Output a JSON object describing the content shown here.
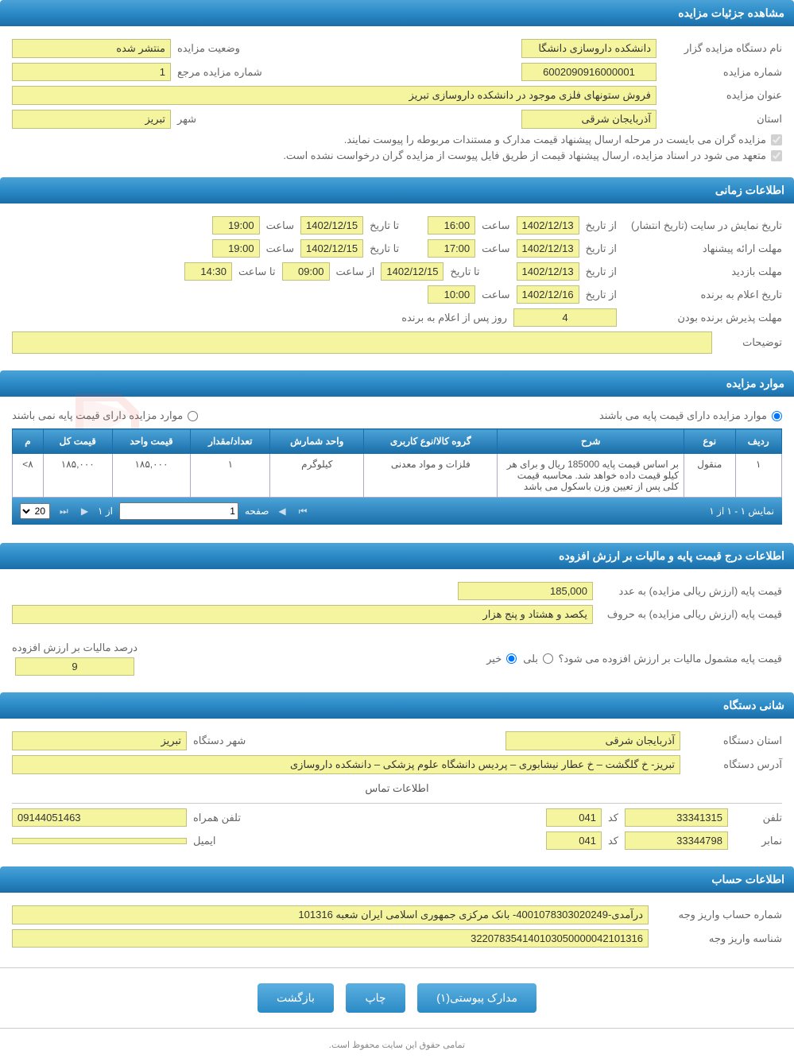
{
  "sections": {
    "details_header": "مشاهده جزئیات مزایده",
    "time_header": "اطلاعات زمانی",
    "items_header": "موارد مزایده",
    "price_header": "اطلاعات درج قیمت پایه و مالیات بر ارزش افزوده",
    "org_header": "شانی دستگاه",
    "account_header": "اطلاعات حساب"
  },
  "details": {
    "org_label": "نام دستگاه مزایده گزار",
    "org_value": "دانشکده داروسازی دانشگا",
    "status_label": "وضعیت مزایده",
    "status_value": "منتشر شده",
    "number_label": "شماره مزایده",
    "number_value": "6002090916000001",
    "ref_label": "شماره مزایده مرجع",
    "ref_value": "1",
    "title_label": "عنوان مزایده",
    "title_value": "فروش ستونهای فلزی موجود در دانشکده داروسازی تبریز",
    "province_label": "استان",
    "province_value": "آذربایجان شرقی",
    "city_label": "شهر",
    "city_value": "تبریز",
    "check1": "مزایده گران می بایست در مرحله ارسال پیشنهاد قیمت مدارک و مستندات مربوطه را پیوست نمایند.",
    "check2": "متعهد می شود در اسناد مزایده، ارسال پیشنهاد قیمت از طریق فایل پیوست از مزایده گران درخواست نشده است."
  },
  "time": {
    "publish_label": "تاریخ نمایش در سایت (تاریخ انتشار)",
    "from_label": "از تاریخ",
    "to_label": "تا تاریخ",
    "hour_label": "ساعت",
    "from_hour_label": "از ساعت",
    "to_hour_label": "تا ساعت",
    "publish_from_date": "1402/12/13",
    "publish_from_hour": "16:00",
    "publish_to_date": "1402/12/15",
    "publish_to_hour": "19:00",
    "offer_label": "مهلت ارائه پیشنهاد",
    "offer_from_date": "1402/12/13",
    "offer_from_hour": "17:00",
    "offer_to_date": "1402/12/15",
    "offer_to_hour": "19:00",
    "visit_label": "مهلت بازدید",
    "visit_from_date": "1402/12/13",
    "visit_to_date": "1402/12/15",
    "visit_from_hour": "09:00",
    "visit_to_hour": "14:30",
    "winner_label": "تاریخ اعلام به برنده",
    "winner_date": "1402/12/16",
    "winner_hour": "10:00",
    "accept_label": "مهلت پذیرش برنده بودن",
    "accept_days": "4",
    "accept_suffix": "روز پس از اعلام به برنده",
    "desc_label": "توضیحات"
  },
  "items": {
    "has_base_label": "موارد مزایده دارای قیمت پایه می باشند",
    "no_base_label": "موارد مزایده دارای قیمت پایه نمی باشند",
    "columns": [
      "ردیف",
      "نوع",
      "شرح",
      "گروه کالا/نوع کاربری",
      "واحد شمارش",
      "تعداد/مقدار",
      "قیمت واحد",
      "قیمت کل",
      "م"
    ],
    "rows": [
      {
        "idx": "۱",
        "type": "منقول",
        "desc": "بر اساس قیمت پایه 185000 ریال و برای هر کیلو قیمت داده خواهد شد. محاسبه قیمت کلی پس از تعیین وزن باسکول می باشد",
        "group": "فلزات و مواد معدنی",
        "unit": "کیلوگرم",
        "qty": "۱",
        "unit_price": "۱۸۵,۰۰۰",
        "total": "۱۸۵,۰۰۰",
        "m": "۸>"
      }
    ],
    "pager": {
      "showing": "نمایش ۱ - ۱ از ۱",
      "page_label": "صفحه",
      "page_value": "1",
      "of_label": "از ۱",
      "size": "20"
    }
  },
  "price": {
    "base_num_label": "قیمت پایه (ارزش ریالی مزایده) به عدد",
    "base_num_value": "185,000",
    "base_txt_label": "قیمت پایه (ارزش ریالی مزایده) به حروف",
    "base_txt_value": "یکصد و هشتاد و پنج هزار",
    "vat_q_label": "قیمت پایه مشمول مالیات بر ارزش افزوده می شود؟",
    "yes": "بلی",
    "no": "خیر",
    "vat_pct_label": "درصد مالیات بر ارزش افزوده",
    "vat_pct_value": "9"
  },
  "org": {
    "province_label": "استان دستگاه",
    "province_value": "آذربایجان شرقی",
    "city_label": "شهر دستگاه",
    "city_value": "تبریز",
    "address_label": "آدرس دستگاه",
    "address_value": "تبریز- خ گلگشت – خ عطار نیشابوری – پردیس دانشگاه علوم پزشکی – دانشکده داروسازی",
    "contact_header": "اطلاعات تماس",
    "phone_label": "تلفن",
    "phone_value": "33341315",
    "code_label": "کد",
    "code1_value": "041",
    "mobile_label": "تلفن همراه",
    "mobile_value": "09144051463",
    "fax_label": "نمابر",
    "fax_value": "33344798",
    "code2_value": "041",
    "email_label": "ایمیل"
  },
  "account": {
    "acc_label": "شماره حساب واریز وجه",
    "acc_value": "درآمدی-4001078303020249- بانک مرکزی جمهوری اسلامی ایران شعبه 101316",
    "id_label": "شناسه واریز وجه",
    "id_value": "322078354140103050000042101316"
  },
  "buttons": {
    "attach": "مدارک پیوستی(۱)",
    "print": "چاپ",
    "back": "بازگشت"
  },
  "footer": "تمامی حقوق این سایت محفوظ است."
}
